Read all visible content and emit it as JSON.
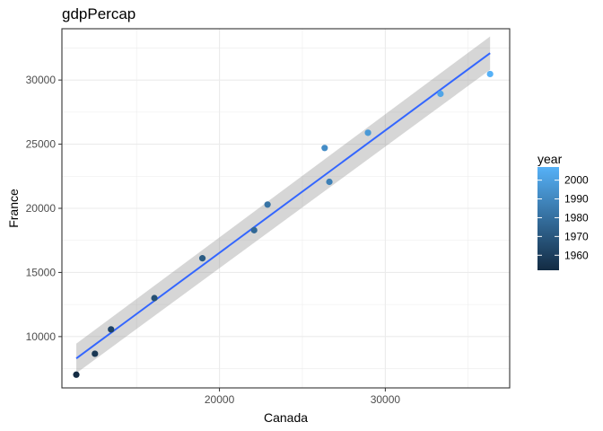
{
  "chart_data": {
    "type": "scatter",
    "title": "gdpPercap",
    "xlabel": "Canada",
    "ylabel": "France",
    "xlim": [
      10500,
      37500
    ],
    "ylim": [
      6000,
      34000
    ],
    "x_ticks": [
      20000,
      30000
    ],
    "y_ticks": [
      10000,
      15000,
      20000,
      25000,
      30000
    ],
    "grid": true,
    "color_by": "year",
    "legend": {
      "title": "year",
      "position": "right",
      "type": "colorbar",
      "range": [
        1952,
        2007
      ],
      "ticks": [
        1960,
        1970,
        1980,
        1990,
        2000
      ],
      "color_low": "#132B43",
      "color_high": "#56B1F7"
    },
    "points": [
      {
        "year": 1952,
        "x": 11367,
        "y": 7030
      },
      {
        "year": 1957,
        "x": 12490,
        "y": 8663
      },
      {
        "year": 1962,
        "x": 13462,
        "y": 10560
      },
      {
        "year": 1967,
        "x": 16077,
        "y": 12999
      },
      {
        "year": 1972,
        "x": 18971,
        "y": 16107
      },
      {
        "year": 1977,
        "x": 22091,
        "y": 18293
      },
      {
        "year": 1982,
        "x": 22899,
        "y": 20294
      },
      {
        "year": 1987,
        "x": 26627,
        "y": 22066
      },
      {
        "year": 1992,
        "x": 26343,
        "y": 24704
      },
      {
        "year": 1997,
        "x": 28955,
        "y": 25890
      },
      {
        "year": 2002,
        "x": 33329,
        "y": 28926
      },
      {
        "year": 2007,
        "x": 36319,
        "y": 30470
      }
    ],
    "trend": {
      "method": "lm",
      "color": "#3366FF",
      "band_color": "#999999",
      "start": {
        "x": 11367,
        "y": 8300,
        "lower": 7150,
        "upper": 9450
      },
      "end": {
        "x": 36319,
        "y": 32100,
        "lower": 30800,
        "upper": 33400
      }
    },
    "colors": {
      "panel_border": "#333333",
      "grid": "#ebebeb"
    }
  }
}
